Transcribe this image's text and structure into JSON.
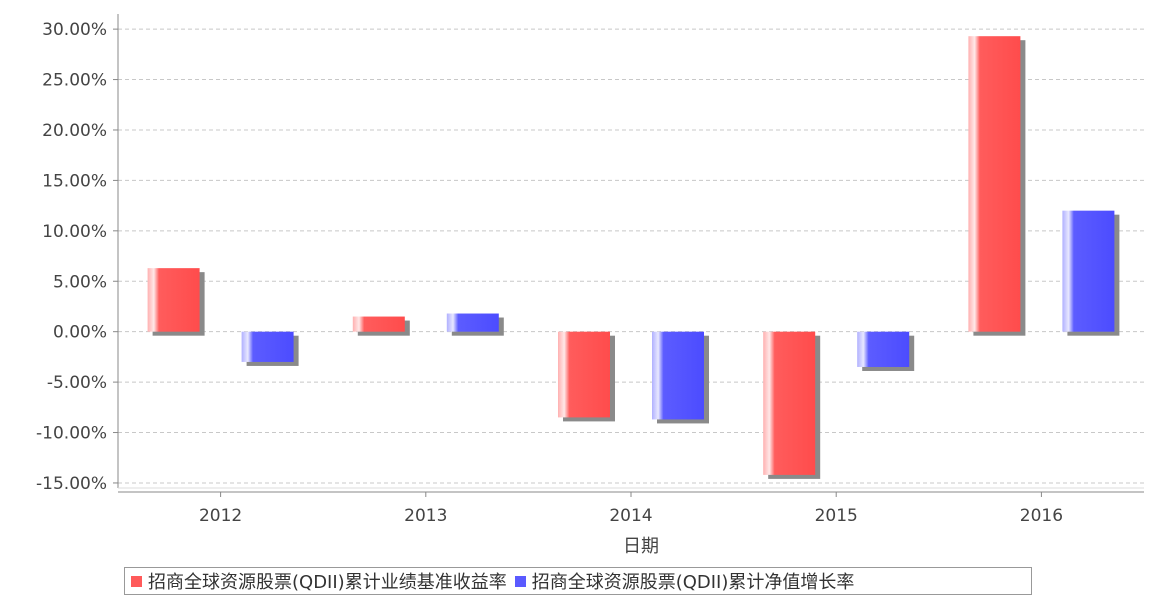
{
  "chart_data": {
    "type": "bar",
    "categories": [
      "2012",
      "2013",
      "2014",
      "2015",
      "2016"
    ],
    "series": [
      {
        "name": "招商全球资源股票(QDII)累计业绩基准收益率",
        "values": [
          6.3,
          1.5,
          -8.5,
          -14.2,
          29.3
        ],
        "color": "#ff5a5a"
      },
      {
        "name": "招商全球资源股票(QDII)累计净值增长率",
        "values": [
          -3.0,
          1.8,
          -8.7,
          -3.5,
          12.0
        ],
        "color": "#5a5aff"
      }
    ],
    "xlabel": "日期",
    "ylabel": "",
    "ylim": [
      -15.5,
      31.5
    ],
    "yticks": [
      30,
      25,
      20,
      15,
      10,
      5,
      0,
      -5,
      -10,
      -15
    ],
    "ytick_format": "percent_2dp",
    "grid": true,
    "legend": "bottom"
  }
}
